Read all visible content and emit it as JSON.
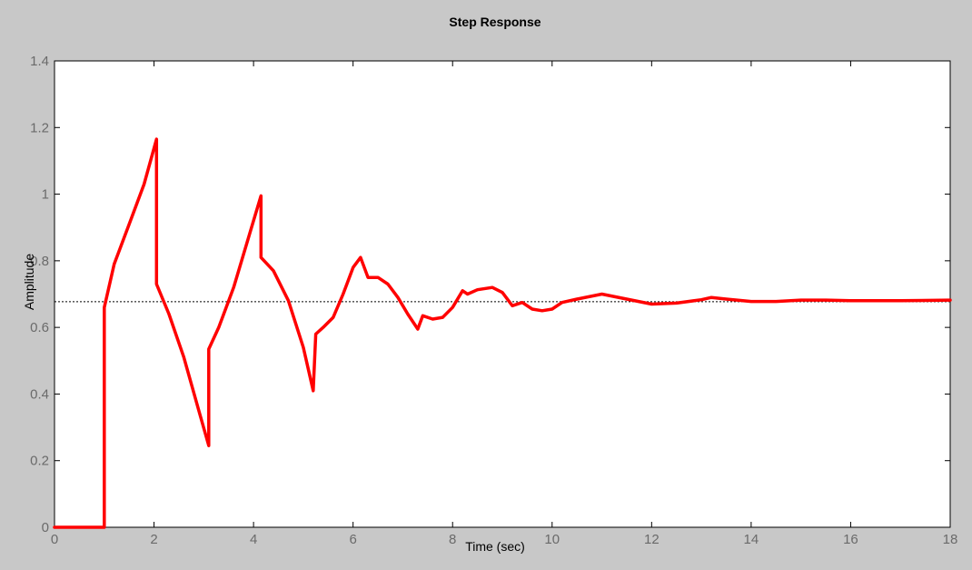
{
  "chart_data": {
    "type": "line",
    "title": "Step Response",
    "xlabel": "Time (sec)",
    "ylabel": "Amplitude",
    "xlim": [
      0,
      18
    ],
    "ylim": [
      0,
      1.4
    ],
    "xticks": [
      0,
      2,
      4,
      6,
      8,
      10,
      12,
      14,
      16,
      18
    ],
    "yticks": [
      0,
      0.2,
      0.4,
      0.6,
      0.8,
      1,
      1.2,
      1.4
    ],
    "xtick_labels": [
      "0",
      "2",
      "4",
      "6",
      "8",
      "10",
      "12",
      "14",
      "16",
      "18"
    ],
    "ytick_labels": [
      "0",
      "0.2",
      "0.4",
      "0.6",
      "0.8",
      "1",
      "1.2",
      "1.4"
    ],
    "grid": false,
    "reference_line": {
      "y": 0.677,
      "style": "dotted",
      "color": "#000000"
    },
    "series": [
      {
        "color": "#ff0000",
        "x": [
          0,
          1.0,
          1.0,
          1.2,
          1.5,
          1.8,
          2.05,
          2.05,
          2.3,
          2.6,
          2.9,
          3.1,
          3.1,
          3.3,
          3.6,
          3.9,
          4.15,
          4.15,
          4.4,
          4.7,
          5.0,
          5.2,
          5.25,
          5.4,
          5.6,
          5.8,
          6.0,
          6.15,
          6.3,
          6.5,
          6.7,
          6.9,
          7.1,
          7.3,
          7.4,
          7.6,
          7.8,
          8.0,
          8.2,
          8.3,
          8.5,
          8.8,
          9.0,
          9.2,
          9.4,
          9.6,
          9.8,
          10.0,
          10.2,
          10.5,
          11.0,
          11.5,
          12.0,
          12.5,
          13.0,
          13.2,
          13.5,
          14.0,
          14.5,
          15.0,
          15.5,
          16.0,
          17.0,
          18.0
        ],
        "y": [
          0,
          0,
          0.66,
          0.79,
          0.91,
          1.03,
          1.165,
          0.73,
          0.64,
          0.51,
          0.35,
          0.245,
          0.535,
          0.6,
          0.72,
          0.87,
          0.995,
          0.81,
          0.77,
          0.68,
          0.54,
          0.41,
          0.58,
          0.6,
          0.63,
          0.7,
          0.78,
          0.81,
          0.75,
          0.75,
          0.73,
          0.69,
          0.64,
          0.595,
          0.635,
          0.625,
          0.63,
          0.66,
          0.71,
          0.7,
          0.713,
          0.72,
          0.705,
          0.665,
          0.675,
          0.655,
          0.65,
          0.655,
          0.675,
          0.685,
          0.7,
          0.685,
          0.67,
          0.673,
          0.683,
          0.69,
          0.685,
          0.678,
          0.678,
          0.682,
          0.682,
          0.68,
          0.68,
          0.682
        ]
      }
    ]
  }
}
